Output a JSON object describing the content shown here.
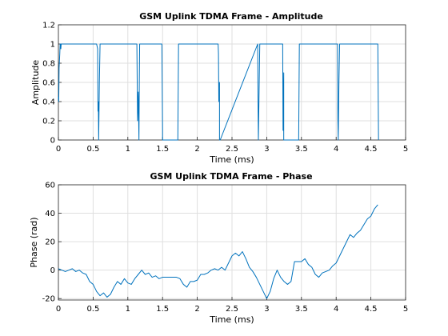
{
  "colors": {
    "line": "#0072BD",
    "background": "#ffffff",
    "grid": "#dfdfdf"
  },
  "chart_data": [
    {
      "type": "line",
      "title": "GSM Uplink TDMA Frame - Amplitude",
      "xlabel": "Time (ms)",
      "ylabel": "Amplitude",
      "xlim": [
        0,
        5
      ],
      "ylim": [
        0,
        1.2
      ],
      "xticks": [
        0,
        0.5,
        1,
        1.5,
        2,
        2.5,
        3,
        3.5,
        4,
        4.5,
        5
      ],
      "xtick_labels": [
        "0",
        "0.5",
        "1",
        "1.5",
        "2",
        "2.5",
        "3",
        "3.5",
        "4",
        "4.5",
        "5"
      ],
      "yticks": [
        0,
        0.2,
        0.4,
        0.6,
        0.8,
        1,
        1.2
      ],
      "ytick_labels": [
        "0",
        "0.2",
        "0.4",
        "0.6",
        "0.8",
        "1",
        "1.2"
      ],
      "grid": true,
      "series": [
        {
          "x": [
            0,
            0.005,
            0.01,
            0.02,
            0.025,
            0.03,
            0.035,
            0.04,
            0.55,
            0.565,
            0.57,
            0.575,
            0.58,
            0.59,
            0.6,
            0.61,
            1.13,
            1.14,
            1.15,
            1.16,
            1.165,
            1.17,
            1.18,
            1.49,
            1.5,
            1.5,
            1.72,
            1.73,
            1.74,
            2.3,
            2.305,
            2.31,
            2.32,
            2.32,
            2.33,
            2.87,
            2.875,
            2.88,
            2.89,
            2.9,
            2.91,
            3.23,
            3.235,
            3.24,
            3.245,
            3.245,
            3.46,
            3.47,
            3.48,
            4.02,
            4.025,
            4.03,
            4.04,
            4.05,
            4.06,
            4.6,
            4.605,
            4.61
          ],
          "y": [
            0.45,
            0.4,
            0.75,
            0.9,
            1,
            1,
            0.95,
            1,
            1,
            0.95,
            0.3,
            0.4,
            0,
            0.6,
            1,
            1,
            1,
            0.2,
            0.5,
            0,
            0.6,
            1,
            1,
            1,
            0.1,
            0,
            0,
            1,
            1,
            1,
            0.9,
            0.4,
            0.6,
            0,
            0,
            1,
            0.4,
            0,
            0.5,
            1,
            1,
            1,
            0.1,
            0.4,
            0.7,
            0,
            0,
            1,
            1,
            1,
            0.2,
            0,
            0.6,
            1,
            1,
            1,
            0.5,
            0
          ]
        }
      ]
    },
    {
      "type": "line",
      "title": "GSM Uplink TDMA Frame - Phase",
      "xlabel": "Time (ms)",
      "ylabel": "Phase (rad)",
      "xlim": [
        0,
        5
      ],
      "ylim": [
        -21,
        60
      ],
      "xticks": [
        0,
        0.5,
        1,
        1.5,
        2,
        2.5,
        3,
        3.5,
        4,
        4.5,
        5
      ],
      "xtick_labels": [
        "0",
        "0.5",
        "1",
        "1.5",
        "2",
        "2.5",
        "3",
        "3.5",
        "4",
        "4.5",
        "5"
      ],
      "yticks": [
        -20,
        0,
        20,
        40,
        60
      ],
      "ytick_labels": [
        "-20",
        "0",
        "20",
        "40",
        "60"
      ],
      "grid": true,
      "series": [
        {
          "x": [
            0,
            0.05,
            0.1,
            0.15,
            0.2,
            0.25,
            0.3,
            0.35,
            0.4,
            0.45,
            0.5,
            0.55,
            0.6,
            0.65,
            0.7,
            0.75,
            0.8,
            0.85,
            0.9,
            0.95,
            1.0,
            1.05,
            1.1,
            1.15,
            1.2,
            1.25,
            1.3,
            1.35,
            1.4,
            1.45,
            1.5,
            1.55,
            1.6,
            1.65,
            1.7,
            1.75,
            1.8,
            1.85,
            1.9,
            1.95,
            2.0,
            2.05,
            2.1,
            2.15,
            2.2,
            2.25,
            2.3,
            2.35,
            2.4,
            2.45,
            2.5,
            2.55,
            2.6,
            2.65,
            2.7,
            2.75,
            2.8,
            2.85,
            2.9,
            2.95,
            3.0,
            3.05,
            3.1,
            3.15,
            3.2,
            3.25,
            3.3,
            3.35,
            3.4,
            3.45,
            3.5,
            3.55,
            3.6,
            3.65,
            3.7,
            3.75,
            3.8,
            3.85,
            3.9,
            3.95,
            4.0,
            4.05,
            4.1,
            4.15,
            4.2,
            4.25,
            4.3,
            4.35,
            4.4,
            4.45,
            4.5,
            4.55,
            4.6
          ],
          "y": [
            1,
            0,
            -1,
            0,
            1,
            -1,
            0,
            -2,
            -3,
            -8,
            -10,
            -15,
            -18,
            -16,
            -19,
            -17,
            -12,
            -8,
            -10,
            -6,
            -9,
            -10,
            -6,
            -3,
            0,
            -3,
            -2,
            -5,
            -4,
            -6,
            -5,
            -5,
            -5,
            -5,
            -5,
            -6,
            -10,
            -12,
            -8,
            -8,
            -7,
            -3,
            -3,
            -2,
            0,
            1,
            0,
            2,
            0,
            5,
            10,
            12,
            10,
            13,
            8,
            2,
            -1,
            -5,
            -10,
            -15,
            -20,
            -15,
            -6,
            0,
            -5,
            -8,
            -10,
            -8,
            6,
            6,
            6,
            8,
            4,
            2,
            -3,
            -5,
            -2,
            -1,
            0,
            3,
            5,
            10,
            15,
            20,
            25,
            23,
            26,
            28,
            32,
            36,
            38,
            43,
            46
          ]
        }
      ]
    }
  ]
}
